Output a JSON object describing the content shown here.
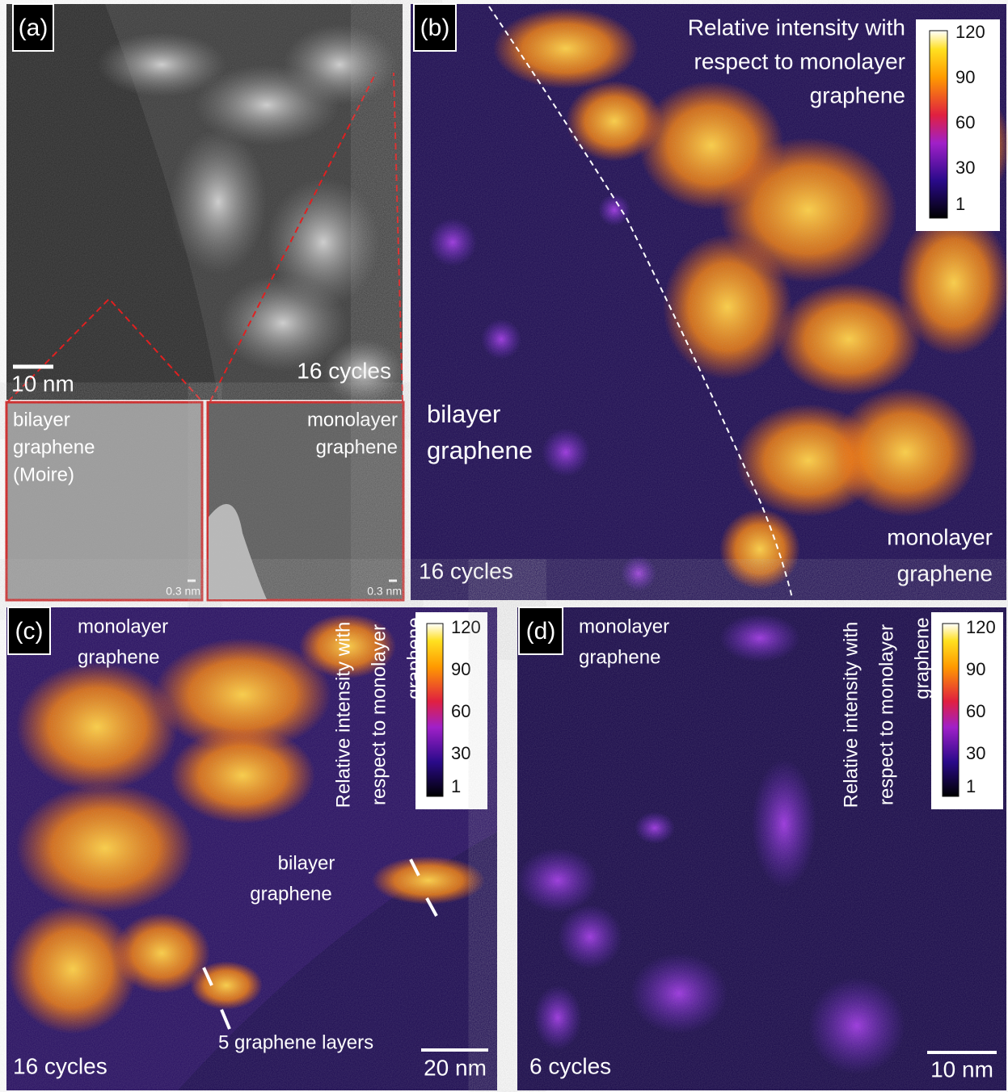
{
  "panels": [
    {
      "label": "(a)",
      "scale_bar": "10 nm",
      "cycles": "16 cycles",
      "insets": [
        {
          "lines": [
            "bilayer",
            "graphene",
            "(Moire)"
          ],
          "scale_bar": "0.3 nm"
        },
        {
          "lines": [
            "monolayer",
            "graphene"
          ],
          "scale_bar": "0.3 nm"
        }
      ]
    },
    {
      "label": "(b)",
      "colorbar_title": [
        "Relative intensity with",
        "respect to monolayer",
        "graphene"
      ],
      "colorbar_ticks": [
        120,
        90,
        60,
        30,
        1
      ],
      "region_1": [
        "bilayer",
        "graphene"
      ],
      "region_2": [
        "monolayer",
        "graphene"
      ],
      "cycles": "16 cycles"
    },
    {
      "label": "(c)",
      "colorbar_title": [
        "Relative intensity with",
        "respect to monolayer",
        "graphene"
      ],
      "colorbar_ticks": [
        120,
        90,
        60,
        30,
        1
      ],
      "region_1": [
        "monolayer",
        "graphene"
      ],
      "region_2": [
        "bilayer",
        "graphene"
      ],
      "annotation": "5 graphene layers",
      "cycles": "16 cycles",
      "scale_bar": "20 nm"
    },
    {
      "label": "(d)",
      "colorbar_title": [
        "Relative intensity with",
        "respect to monolayer",
        "graphene"
      ],
      "colorbar_ticks": [
        120,
        90,
        60,
        30,
        1
      ],
      "region_1": [
        "monolayer",
        "graphene"
      ],
      "cycles": "6 cycles",
      "scale_bar": "10 nm"
    }
  ]
}
